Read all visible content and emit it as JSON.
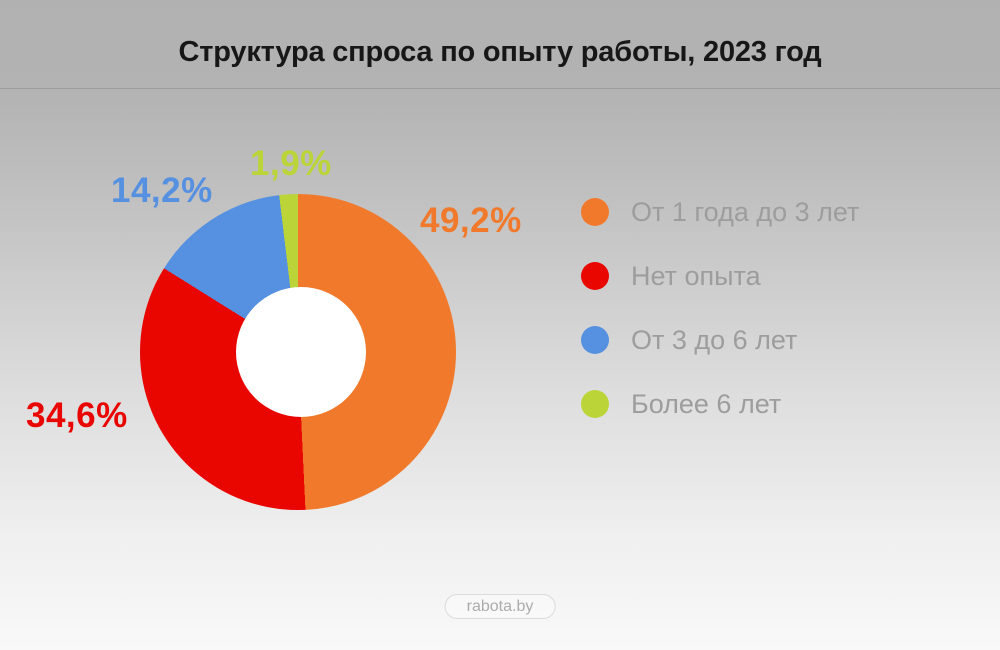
{
  "header": {
    "title": "Структура спроса по опыту работы, 2023 год"
  },
  "chart_data": {
    "type": "pie",
    "subtype": "donut",
    "title": "Структура спроса по опыту работы, 2023 год",
    "start_angle_deg": 0,
    "direction": "clockwise",
    "categories": [
      "От 1 года до 3 лет",
      "Нет опыта",
      "От 3 до 6 лет",
      "Более 6 лет"
    ],
    "values": [
      49.2,
      34.6,
      14.2,
      1.9
    ],
    "value_labels": [
      "49,2%",
      "34,6%",
      "14,2%",
      "1,9%"
    ],
    "unit": "%",
    "colors": [
      "#F1792B",
      "#E90500",
      "#5690E0",
      "#BBD437"
    ],
    "hole_color": "#FFFFFF",
    "legend_position": "right",
    "legend_text_color": "#9D9D9D"
  },
  "footer": {
    "badge_label": "rabota.by"
  },
  "style": {
    "background_top": "#B1B1B1",
    "background_bottom": "#F9F9F9",
    "title_color": "#171717",
    "badge_text_color": "#ACACAC",
    "badge_border_color": "#DBDBDB"
  }
}
